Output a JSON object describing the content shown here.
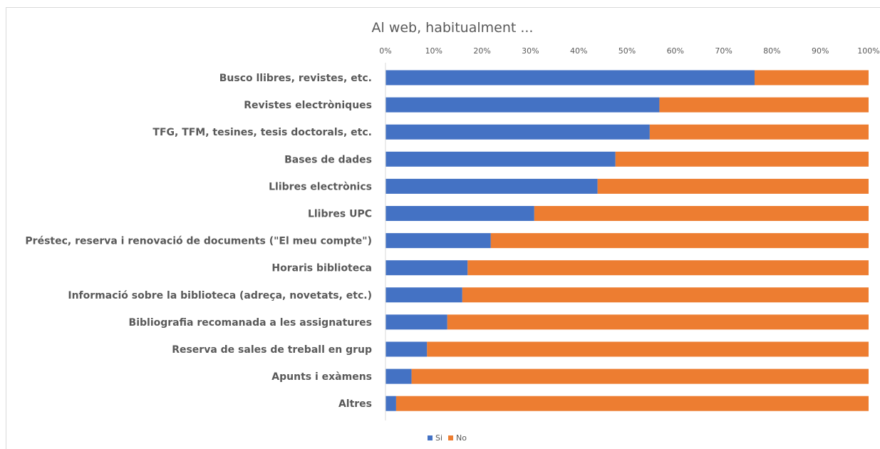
{
  "chart_data": {
    "type": "bar",
    "orientation": "horizontal",
    "stacked": "percent",
    "title": "Al web, habitualment ...",
    "xlim": [
      0,
      100
    ],
    "x_ticks": [
      "0%",
      "10%",
      "20%",
      "30%",
      "40%",
      "50%",
      "60%",
      "70%",
      "80%",
      "90%",
      "100%"
    ],
    "categories": [
      "Busco llibres, revistes, etc.",
      "Revistes electròniques",
      "TFG, TFM, tesines, tesis doctorals, etc.",
      "Bases de dades",
      "Llibres electrònics",
      "Llibres UPC",
      "Préstec, reserva i renovació de documents (\"El meu compte\")",
      "Horaris biblioteca",
      "Informació sobre la biblioteca (adreça, novetats, etc.)",
      "Bibliografia recomanada a les assignatures",
      "Reserva de sales de treball en grup",
      "Apunts i exàmens",
      "Altres"
    ],
    "series": [
      {
        "name": "Si",
        "color": "#4472c4",
        "values": [
          76.4,
          56.7,
          54.7,
          47.6,
          43.9,
          30.8,
          21.8,
          17.0,
          15.9,
          12.8,
          8.6,
          5.4,
          2.2
        ]
      },
      {
        "name": "No",
        "color": "#ed7d31",
        "values": [
          23.6,
          43.3,
          45.3,
          52.4,
          56.1,
          69.2,
          78.2,
          83.0,
          84.1,
          87.2,
          91.4,
          94.6,
          97.8
        ]
      }
    ],
    "legend_position": "bottom",
    "grid": false
  }
}
